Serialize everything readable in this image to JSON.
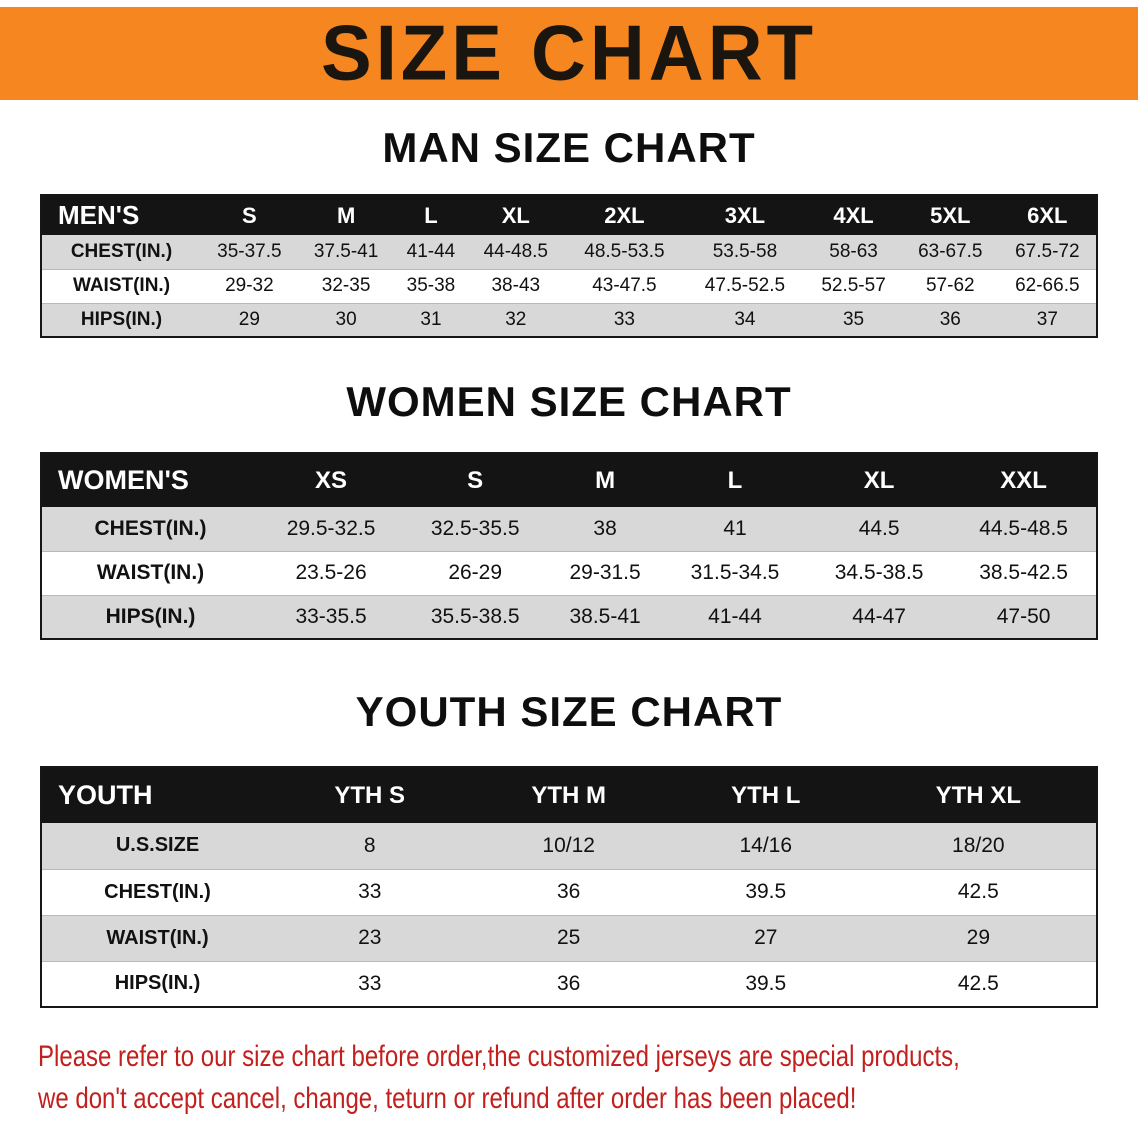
{
  "banner": {
    "title": "SIZE CHART",
    "bg_color": "#f6861f",
    "text_color": "#1b1510"
  },
  "men": {
    "heading": "MAN SIZE CHART",
    "header": [
      "MEN'S",
      "S",
      "M",
      "L",
      "XL",
      "2XL",
      "3XL",
      "4XL",
      "5XL",
      "6XL"
    ],
    "rows": [
      [
        "CHEST(IN.)",
        "35-37.5",
        "37.5-41",
        "41-44",
        "44-48.5",
        "48.5-53.5",
        "53.5-58",
        "58-63",
        "63-67.5",
        "67.5-72"
      ],
      [
        "WAIST(IN.)",
        "29-32",
        "32-35",
        "35-38",
        "38-43",
        "43-47.5",
        "47.5-52.5",
        "52.5-57",
        "57-62",
        "62-66.5"
      ],
      [
        "HIPS(IN.)",
        "29",
        "30",
        "31",
        "32",
        "33",
        "34",
        "35",
        "36",
        "37"
      ]
    ]
  },
  "women": {
    "heading": "WOMEN SIZE CHART",
    "header": [
      "WOMEN'S",
      "XS",
      "S",
      "M",
      "L",
      "XL",
      "XXL"
    ],
    "rows": [
      [
        "CHEST(IN.)",
        "29.5-32.5",
        "32.5-35.5",
        "38",
        "41",
        "44.5",
        "44.5-48.5"
      ],
      [
        "WAIST(IN.)",
        "23.5-26",
        "26-29",
        "29-31.5",
        "31.5-34.5",
        "34.5-38.5",
        "38.5-42.5"
      ],
      [
        "HIPS(IN.)",
        "33-35.5",
        "35.5-38.5",
        "38.5-41",
        "41-44",
        "44-47",
        "47-50"
      ]
    ]
  },
  "youth": {
    "heading": "YOUTH SIZE CHART",
    "header": [
      "YOUTH",
      "YTH S",
      "YTH M",
      "YTH L",
      "YTH XL"
    ],
    "rows": [
      [
        "U.S.SIZE",
        "8",
        "10/12",
        "14/16",
        "18/20"
      ],
      [
        "CHEST(IN.)",
        "33",
        "36",
        "39.5",
        "42.5"
      ],
      [
        "WAIST(IN.)",
        "23",
        "25",
        "27",
        "29"
      ],
      [
        "HIPS(IN.)",
        "33",
        "36",
        "39.5",
        "42.5"
      ]
    ]
  },
  "footer": {
    "line1": "Please refer to our size chart before order,the customized jerseys are special products,",
    "line2": "we don't accept cancel, change, teturn or refund after order has been placed!",
    "text_color": "#c2201d"
  }
}
